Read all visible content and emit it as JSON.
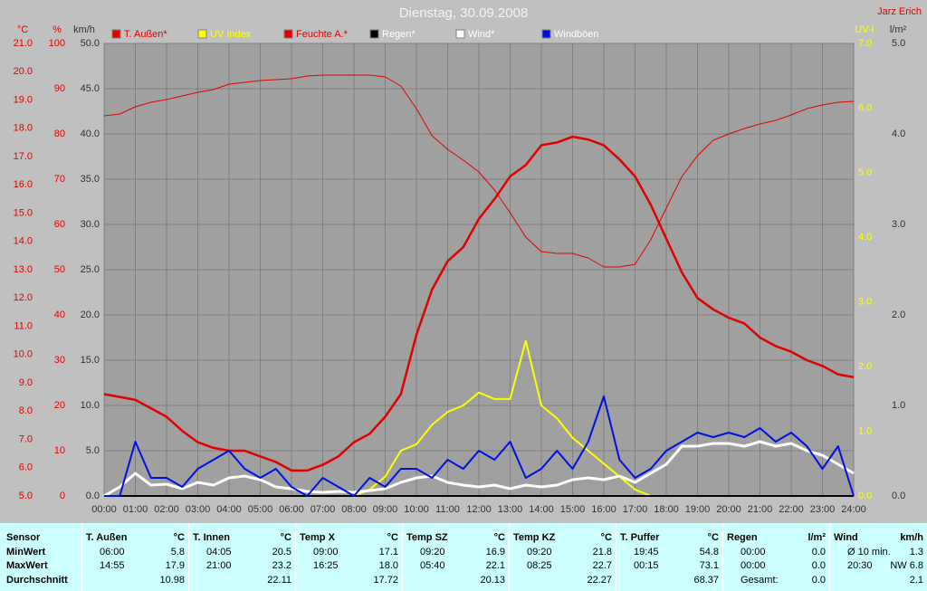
{
  "chart_data": {
    "type": "line",
    "title": "Dienstag, 30.09.2008",
    "author": "Jarz Erich",
    "xlim": [
      0,
      24
    ],
    "xticks": [
      {
        "value": 0,
        "label": "00:00"
      },
      {
        "value": 1,
        "label": "01:00"
      },
      {
        "value": 2,
        "label": "02:00"
      },
      {
        "value": 3,
        "label": "03:00"
      },
      {
        "value": 4,
        "label": "04:00"
      },
      {
        "value": 5,
        "label": "05:00"
      },
      {
        "value": 6,
        "label": "06:00"
      },
      {
        "value": 7,
        "label": "07:00"
      },
      {
        "value": 8,
        "label": "08:00"
      },
      {
        "value": 9,
        "label": "09:00"
      },
      {
        "value": 10,
        "label": "10:00"
      },
      {
        "value": 11,
        "label": "11:00"
      },
      {
        "value": 12,
        "label": "12:00"
      },
      {
        "value": 13,
        "label": "13:00"
      },
      {
        "value": 14,
        "label": "14:00"
      },
      {
        "value": 15,
        "label": "15:00"
      },
      {
        "value": 16,
        "label": "16:00"
      },
      {
        "value": 17,
        "label": "17:00"
      },
      {
        "value": 18,
        "label": "18:00"
      },
      {
        "value": 19,
        "label": "19:00"
      },
      {
        "value": 20,
        "label": "20:00"
      },
      {
        "value": 21,
        "label": "21:00"
      },
      {
        "value": 22,
        "label": "22:00"
      },
      {
        "value": 23,
        "label": "23:00"
      },
      {
        "value": 24,
        "label": "24:00"
      }
    ],
    "axes": [
      {
        "label": "°C",
        "color": "#e00000",
        "lim": [
          5,
          21
        ],
        "ticks": [
          {
            "value": 5,
            "label": "5.0"
          },
          {
            "value": 6,
            "label": "6.0"
          },
          {
            "value": 7,
            "label": "7.0"
          },
          {
            "value": 8,
            "label": "8.0"
          },
          {
            "value": 9,
            "label": "9.0"
          },
          {
            "value": 10,
            "label": "10.0"
          },
          {
            "value": 11,
            "label": "11.0"
          },
          {
            "value": 12,
            "label": "12.0"
          },
          {
            "value": 13,
            "label": "13.0"
          },
          {
            "value": 14,
            "label": "14.0"
          },
          {
            "value": 15,
            "label": "15.0"
          },
          {
            "value": 16,
            "label": "16.0"
          },
          {
            "value": 17,
            "label": "17.0"
          },
          {
            "value": 18,
            "label": "18.0"
          },
          {
            "value": 19,
            "label": "19.0"
          },
          {
            "value": 20,
            "label": "20.0"
          },
          {
            "value": 21,
            "label": "21.0"
          }
        ]
      },
      {
        "label": "%",
        "color": "#e00000",
        "lim": [
          0,
          100
        ],
        "ticks": [
          0,
          10,
          20,
          30,
          40,
          50,
          60,
          70,
          80,
          90,
          100
        ]
      },
      {
        "label": "km/h",
        "color": "#303030",
        "lim": [
          0,
          50
        ],
        "grid": true,
        "ticks": [
          {
            "value": 0,
            "label": "0.0"
          },
          {
            "value": 5,
            "label": "5.0"
          },
          {
            "value": 10,
            "label": "10.0"
          },
          {
            "value": 15,
            "label": "15.0"
          },
          {
            "value": 20,
            "label": "20.0"
          },
          {
            "value": 25,
            "label": "25.0"
          },
          {
            "value": 30,
            "label": "30.0"
          },
          {
            "value": 35,
            "label": "35.0"
          },
          {
            "value": 40,
            "label": "40.0"
          },
          {
            "value": 45,
            "label": "45.0"
          },
          {
            "value": 50,
            "label": "50.0"
          }
        ]
      },
      {
        "label": "UV-I",
        "color": "#ffff00",
        "lim": [
          0,
          7
        ],
        "ticks": [
          {
            "value": 0,
            "label": "0.0"
          },
          {
            "value": 1,
            "label": "1.0"
          },
          {
            "value": 2,
            "label": "2.0"
          },
          {
            "value": 3,
            "label": "3.0"
          },
          {
            "value": 4,
            "label": "4.0"
          },
          {
            "value": 5,
            "label": "5.0"
          },
          {
            "value": 6,
            "label": "6.0"
          },
          {
            "value": 7,
            "label": "7.0"
          }
        ]
      },
      {
        "label": "l/m²",
        "color": "#303030",
        "lim": [
          0,
          5
        ],
        "ticks": [
          {
            "value": 0,
            "label": "0.0"
          },
          {
            "value": 1,
            "label": "1.0"
          },
          {
            "value": 2,
            "label": "2.0"
          },
          {
            "value": 3,
            "label": "3.0"
          },
          {
            "value": 4,
            "label": "4.0"
          },
          {
            "value": 5,
            "label": "5.0"
          }
        ]
      }
    ],
    "x": [
      0,
      0.5,
      1,
      1.5,
      2,
      2.5,
      3,
      3.5,
      4,
      4.5,
      5,
      5.5,
      6,
      6.5,
      7,
      7.5,
      8,
      8.5,
      9,
      9.5,
      10,
      10.5,
      11,
      11.5,
      12,
      12.5,
      13,
      13.5,
      14,
      14.5,
      15,
      15.5,
      16,
      16.5,
      17,
      17.5,
      18,
      18.5,
      19,
      19.5,
      20,
      20.5,
      21,
      21.5,
      22,
      22.5,
      23,
      23.5,
      24
    ],
    "series": [
      {
        "name": "T. Außen*",
        "color": "#e00000",
        "label_color": "#e00000",
        "axis": 0,
        "width": 2.5,
        "values": [
          8.6,
          8.5,
          8.4,
          8.1,
          7.8,
          7.3,
          6.9,
          6.7,
          6.6,
          6.6,
          6.4,
          6.2,
          5.9,
          5.9,
          6.1,
          6.4,
          6.9,
          7.2,
          7.8,
          8.6,
          10.7,
          12.3,
          13.3,
          13.8,
          14.8,
          15.5,
          16.3,
          16.7,
          17.4,
          17.5,
          17.7,
          17.6,
          17.4,
          16.9,
          16.3,
          15.3,
          14.1,
          12.9,
          12.0,
          11.6,
          11.3,
          11.1,
          10.6,
          10.3,
          10.1,
          9.8,
          9.6,
          9.3,
          9.2
        ]
      },
      {
        "name": "UV Index",
        "color": "#ffff00",
        "label_color": "#ffff00",
        "axis": 3,
        "width": 2,
        "values": [
          0,
          0,
          0,
          0,
          0,
          0,
          0,
          0,
          0,
          0,
          0,
          0,
          0,
          0,
          0,
          0,
          0,
          0.1,
          0.3,
          0.7,
          0.8,
          1.1,
          1.3,
          1.4,
          1.6,
          1.5,
          1.5,
          2.4,
          1.4,
          1.2,
          0.9,
          0.7,
          0.5,
          0.3,
          0.1,
          0,
          0,
          0,
          0,
          0,
          0,
          0,
          0,
          0,
          0,
          0,
          0,
          0,
          0
        ]
      },
      {
        "name": "Feuchte A.*",
        "color": "#e00000",
        "label_color": "#e00000",
        "axis": 1,
        "width": 1,
        "values": [
          84,
          84.4,
          86,
          87,
          87.6,
          88.4,
          89.2,
          89.8,
          91,
          91.4,
          91.8,
          92,
          92.2,
          92.8,
          93,
          93,
          93,
          93,
          92.6,
          90.6,
          85.6,
          79.6,
          76.6,
          74.2,
          71.6,
          67.6,
          62.6,
          57.2,
          54,
          53.6,
          53.6,
          52.6,
          50.6,
          50.6,
          51.2,
          56.6,
          63.6,
          70.6,
          75.2,
          78.6,
          80,
          81.2,
          82.2,
          83,
          84.2,
          85.6,
          86.4,
          87,
          87.2
        ]
      },
      {
        "name": "Regen*",
        "color": "#000000",
        "label_color": "#ffffff",
        "axis": 4,
        "width": 2,
        "values": [
          0,
          0,
          0,
          0,
          0,
          0,
          0,
          0,
          0,
          0,
          0,
          0,
          0,
          0,
          0,
          0,
          0,
          0,
          0,
          0,
          0,
          0,
          0,
          0,
          0,
          0,
          0,
          0,
          0,
          0,
          0,
          0,
          0,
          0,
          0,
          0,
          0,
          0,
          0,
          0,
          0,
          0,
          0,
          0,
          0,
          0,
          0,
          0,
          0
        ]
      },
      {
        "name": "Wind*",
        "color": "#ffffff",
        "label_color": "#ffffff",
        "axis": 2,
        "width": 3,
        "values": [
          0,
          1,
          2.5,
          1.2,
          1.3,
          0.8,
          1.5,
          1.2,
          2,
          2.2,
          1.8,
          1,
          0.8,
          0.5,
          0.4,
          0.5,
          0.4,
          0.6,
          0.8,
          1.5,
          2,
          2.2,
          1.5,
          1.2,
          1,
          1.2,
          0.8,
          1.2,
          1,
          1.2,
          1.8,
          2,
          1.8,
          2.2,
          1.5,
          2.5,
          3.5,
          5.5,
          5.5,
          5.8,
          5.8,
          5.5,
          6,
          5.5,
          5.8,
          5,
          4.5,
          3.5,
          2.5
        ]
      },
      {
        "name": "Windböen",
        "color": "#0010e0",
        "label_color": "#ffffff",
        "axis": 2,
        "width": 2,
        "values": [
          0,
          0,
          6,
          2,
          2,
          1,
          3,
          4,
          5,
          3,
          2,
          3,
          1,
          0,
          2,
          1,
          0,
          2,
          1,
          3,
          3,
          2,
          4,
          3,
          5,
          4,
          6,
          2,
          3,
          5,
          3,
          6,
          11,
          4,
          2,
          3,
          5,
          6,
          7,
          6.5,
          7,
          6.5,
          7.5,
          6,
          7,
          5.5,
          3,
          5.5,
          0
        ]
      }
    ]
  },
  "table": {
    "row_header": "Sensor",
    "row_labels": [
      "MinWert",
      "MaxWert",
      "Durchschnitt"
    ],
    "columns": [
      {
        "name": "T. Außen",
        "unit": "°C",
        "rows": [
          [
            "06:00",
            "5.8"
          ],
          [
            "14:55",
            "17.9"
          ],
          [
            "10.98"
          ]
        ]
      },
      {
        "name": "T. Innen",
        "unit": "°C",
        "rows": [
          [
            "04:05",
            "20.5"
          ],
          [
            "21:00",
            "23.2"
          ],
          [
            "22.11"
          ]
        ]
      },
      {
        "name": "Temp X",
        "unit": "°C",
        "rows": [
          [
            "09:00",
            "17.1"
          ],
          [
            "16:25",
            "18.0"
          ],
          [
            "17.72"
          ]
        ]
      },
      {
        "name": "Temp SZ",
        "unit": "°C",
        "rows": [
          [
            "09:20",
            "16.9"
          ],
          [
            "05:40",
            "22.1"
          ],
          [
            "20.13"
          ]
        ]
      },
      {
        "name": "Temp KZ",
        "unit": "°C",
        "rows": [
          [
            "09:20",
            "21.8"
          ],
          [
            "08:25",
            "22.7"
          ],
          [
            "22.27"
          ]
        ]
      },
      {
        "name": "T. Puffer",
        "unit": "°C",
        "rows": [
          [
            "19:45",
            "54.8"
          ],
          [
            "00:15",
            "73.1"
          ],
          [
            "68.37"
          ]
        ]
      },
      {
        "name": "Regen",
        "unit": "l/m²",
        "rows": [
          [
            "00:00",
            "0.0"
          ],
          [
            "00:00",
            "0.0"
          ],
          [
            "Gesamt:",
            "0.0"
          ]
        ]
      },
      {
        "name": "Wind",
        "unit": "km/h",
        "rows": [
          [
            "Ø 10 min.",
            "1.3"
          ],
          [
            "20:30",
            "NW 6.8"
          ],
          [
            "2.1"
          ]
        ]
      }
    ]
  }
}
